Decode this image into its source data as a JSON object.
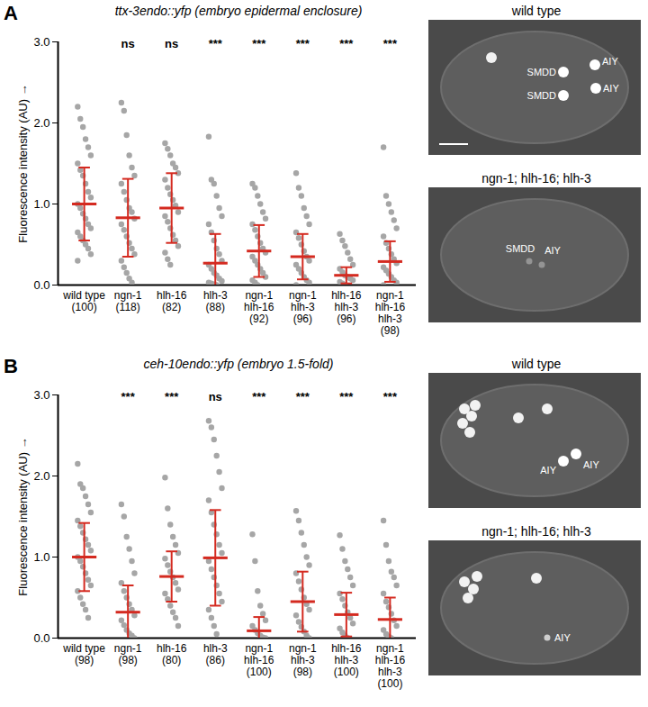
{
  "chart_data": [
    {
      "type": "scatter",
      "panel": "A",
      "title": "ttx-3endo::yfp (embryo epidermal enclosure)",
      "y_label": "Fluorescence intensity (AU)",
      "ylim": [
        0,
        3
      ],
      "yticks": [
        0,
        1,
        2,
        3
      ],
      "color": "#a6a6a6",
      "categories": [
        "wild type\n(100)",
        "ngn-1\n(118)",
        "hlh-16\n(82)",
        "hlh-3\n(88)",
        "ngn-1\nhlh-16\n(92)",
        "ngn-1\nhlh-3\n(96)",
        "hlh-16\nhlh-3\n(96)",
        "ngn-1\nhlh-16\nhlh-3\n(98)"
      ],
      "significance": [
        null,
        "ns",
        "ns",
        "***",
        "***",
        "***",
        "***",
        "***"
      ],
      "mean": [
        1.0,
        0.83,
        0.95,
        0.27,
        0.42,
        0.35,
        0.12,
        0.29
      ],
      "error": [
        0.45,
        0.48,
        0.43,
        0.36,
        0.32,
        0.28,
        0.1,
        0.25
      ],
      "values": [
        [
          2.2,
          2.05,
          1.95,
          1.8,
          1.7,
          1.6,
          1.5,
          1.42,
          1.35,
          1.25,
          1.15,
          1.08,
          1.0,
          0.95,
          0.88,
          0.82,
          0.75,
          0.7,
          0.65,
          0.6,
          0.55,
          0.5,
          0.45,
          0.38,
          0.3
        ],
        [
          2.25,
          2.15,
          1.85,
          1.6,
          1.45,
          1.35,
          1.25,
          1.15,
          1.05,
          0.95,
          0.9,
          0.82,
          0.75,
          0.68,
          0.6,
          0.52,
          0.45,
          0.38,
          0.3,
          0.22,
          0.15,
          0.08,
          0.03
        ],
        [
          1.75,
          1.68,
          1.6,
          1.5,
          1.45,
          1.38,
          1.3,
          1.2,
          1.12,
          1.05,
          0.98,
          0.9,
          0.85,
          0.78,
          0.7,
          0.62,
          0.55,
          0.48,
          0.4,
          0.32,
          0.25
        ],
        [
          1.83,
          1.3,
          1.25,
          1.1,
          0.95,
          0.85,
          0.75,
          0.65,
          0.55,
          0.45,
          0.38,
          0.3,
          0.25,
          0.2,
          0.15,
          0.12,
          0.08,
          0.05,
          0.03,
          0.02,
          0.01,
          0.0
        ],
        [
          1.25,
          1.2,
          1.1,
          1.0,
          0.9,
          0.82,
          0.75,
          0.68,
          0.6,
          0.52,
          0.45,
          0.4,
          0.35,
          0.3,
          0.25,
          0.2,
          0.15,
          0.1,
          0.06,
          0.03,
          0.0
        ],
        [
          1.38,
          1.2,
          1.1,
          0.95,
          0.85,
          0.75,
          0.65,
          0.58,
          0.5,
          0.42,
          0.35,
          0.3,
          0.25,
          0.2,
          0.15,
          0.1,
          0.06,
          0.03,
          0.0
        ],
        [
          0.63,
          0.55,
          0.48,
          0.4,
          0.32,
          0.25,
          0.2,
          0.16,
          0.12,
          0.1,
          0.08,
          0.06,
          0.04,
          0.02,
          0.0
        ],
        [
          1.7,
          1.1,
          1.0,
          0.9,
          0.8,
          0.7,
          0.6,
          0.52,
          0.45,
          0.38,
          0.32,
          0.27,
          0.22,
          0.18,
          0.14,
          0.1,
          0.06,
          0.03,
          0.0
        ]
      ],
      "images": [
        {
          "title": "wild type",
          "labels": [
            "SMDD",
            "AIY",
            "SMDD",
            "AIY"
          ]
        },
        {
          "title": "ngn-1; hlh-16; hlh-3",
          "labels": [
            "SMDD",
            "AIY"
          ]
        }
      ]
    },
    {
      "type": "scatter",
      "panel": "B",
      "title": "ceh-10endo::yfp (embryo 1.5-fold)",
      "y_label": "Fluorescence intensity (AU)",
      "ylim": [
        0,
        3
      ],
      "yticks": [
        0,
        1,
        2,
        3
      ],
      "color": "#a6a6a6",
      "categories": [
        "wild type\n(98)",
        "ngn-1\n(98)",
        "hlh-16\n(80)",
        "hlh-3\n(86)",
        "ngn-1\nhlh-16\n(100)",
        "ngn-1\nhlh-3\n(98)",
        "hlh-16\nhlh-3\n(100)",
        "ngn-1\nhlh-16\nhlh-3\n(100)"
      ],
      "significance": [
        null,
        "***",
        "***",
        "ns",
        "***",
        "***",
        "***",
        "***"
      ],
      "mean": [
        1.0,
        0.32,
        0.76,
        0.99,
        0.09,
        0.45,
        0.29,
        0.23
      ],
      "error": [
        0.42,
        0.33,
        0.31,
        0.59,
        0.17,
        0.37,
        0.27,
        0.27
      ],
      "values": [
        [
          2.15,
          1.9,
          1.85,
          1.75,
          1.65,
          1.55,
          1.45,
          1.38,
          1.3,
          1.22,
          1.15,
          1.08,
          1.0,
          0.95,
          0.88,
          0.8,
          0.72,
          0.65,
          0.58,
          0.5,
          0.42,
          0.35,
          0.25
        ],
        [
          1.65,
          1.5,
          1.25,
          1.1,
          0.95,
          0.8,
          0.68,
          0.58,
          0.5,
          0.42,
          0.35,
          0.28,
          0.22,
          0.16,
          0.1,
          0.06,
          0.03,
          0.0
        ],
        [
          1.98,
          1.6,
          1.4,
          1.25,
          1.15,
          1.05,
          0.98,
          0.9,
          0.82,
          0.75,
          0.68,
          0.6,
          0.55,
          0.48,
          0.4,
          0.32,
          0.25,
          0.15
        ],
        [
          2.68,
          2.6,
          2.45,
          2.25,
          2.05,
          1.85,
          1.7,
          1.55,
          1.4,
          1.28,
          1.15,
          1.05,
          0.95,
          0.85,
          0.75,
          0.65,
          0.55,
          0.45,
          0.35,
          0.25,
          0.15,
          0.05
        ],
        [
          1.28,
          0.95,
          0.58,
          0.4,
          0.3,
          0.22,
          0.15,
          0.1,
          0.06,
          0.03,
          0.01,
          0.0
        ],
        [
          1.57,
          1.45,
          1.3,
          1.15,
          1.0,
          0.9,
          0.8,
          0.7,
          0.6,
          0.5,
          0.42,
          0.35,
          0.28,
          0.2,
          0.14,
          0.08,
          0.03,
          0.0
        ],
        [
          1.27,
          1.1,
          0.95,
          0.85,
          0.75,
          0.65,
          0.55,
          0.48,
          0.4,
          0.32,
          0.25,
          0.18,
          0.12,
          0.07,
          0.03,
          0.0
        ],
        [
          1.45,
          1.15,
          0.95,
          0.82,
          0.75,
          0.65,
          0.55,
          0.45,
          0.38,
          0.3,
          0.22,
          0.15,
          0.1,
          0.05,
          0.02,
          0.0
        ]
      ],
      "images": [
        {
          "title": "wild type",
          "labels": [
            "AIY",
            "AIY"
          ]
        },
        {
          "title": "ngn-1; hlh-16; hlh-3",
          "labels": [
            "AIY"
          ]
        }
      ]
    }
  ]
}
